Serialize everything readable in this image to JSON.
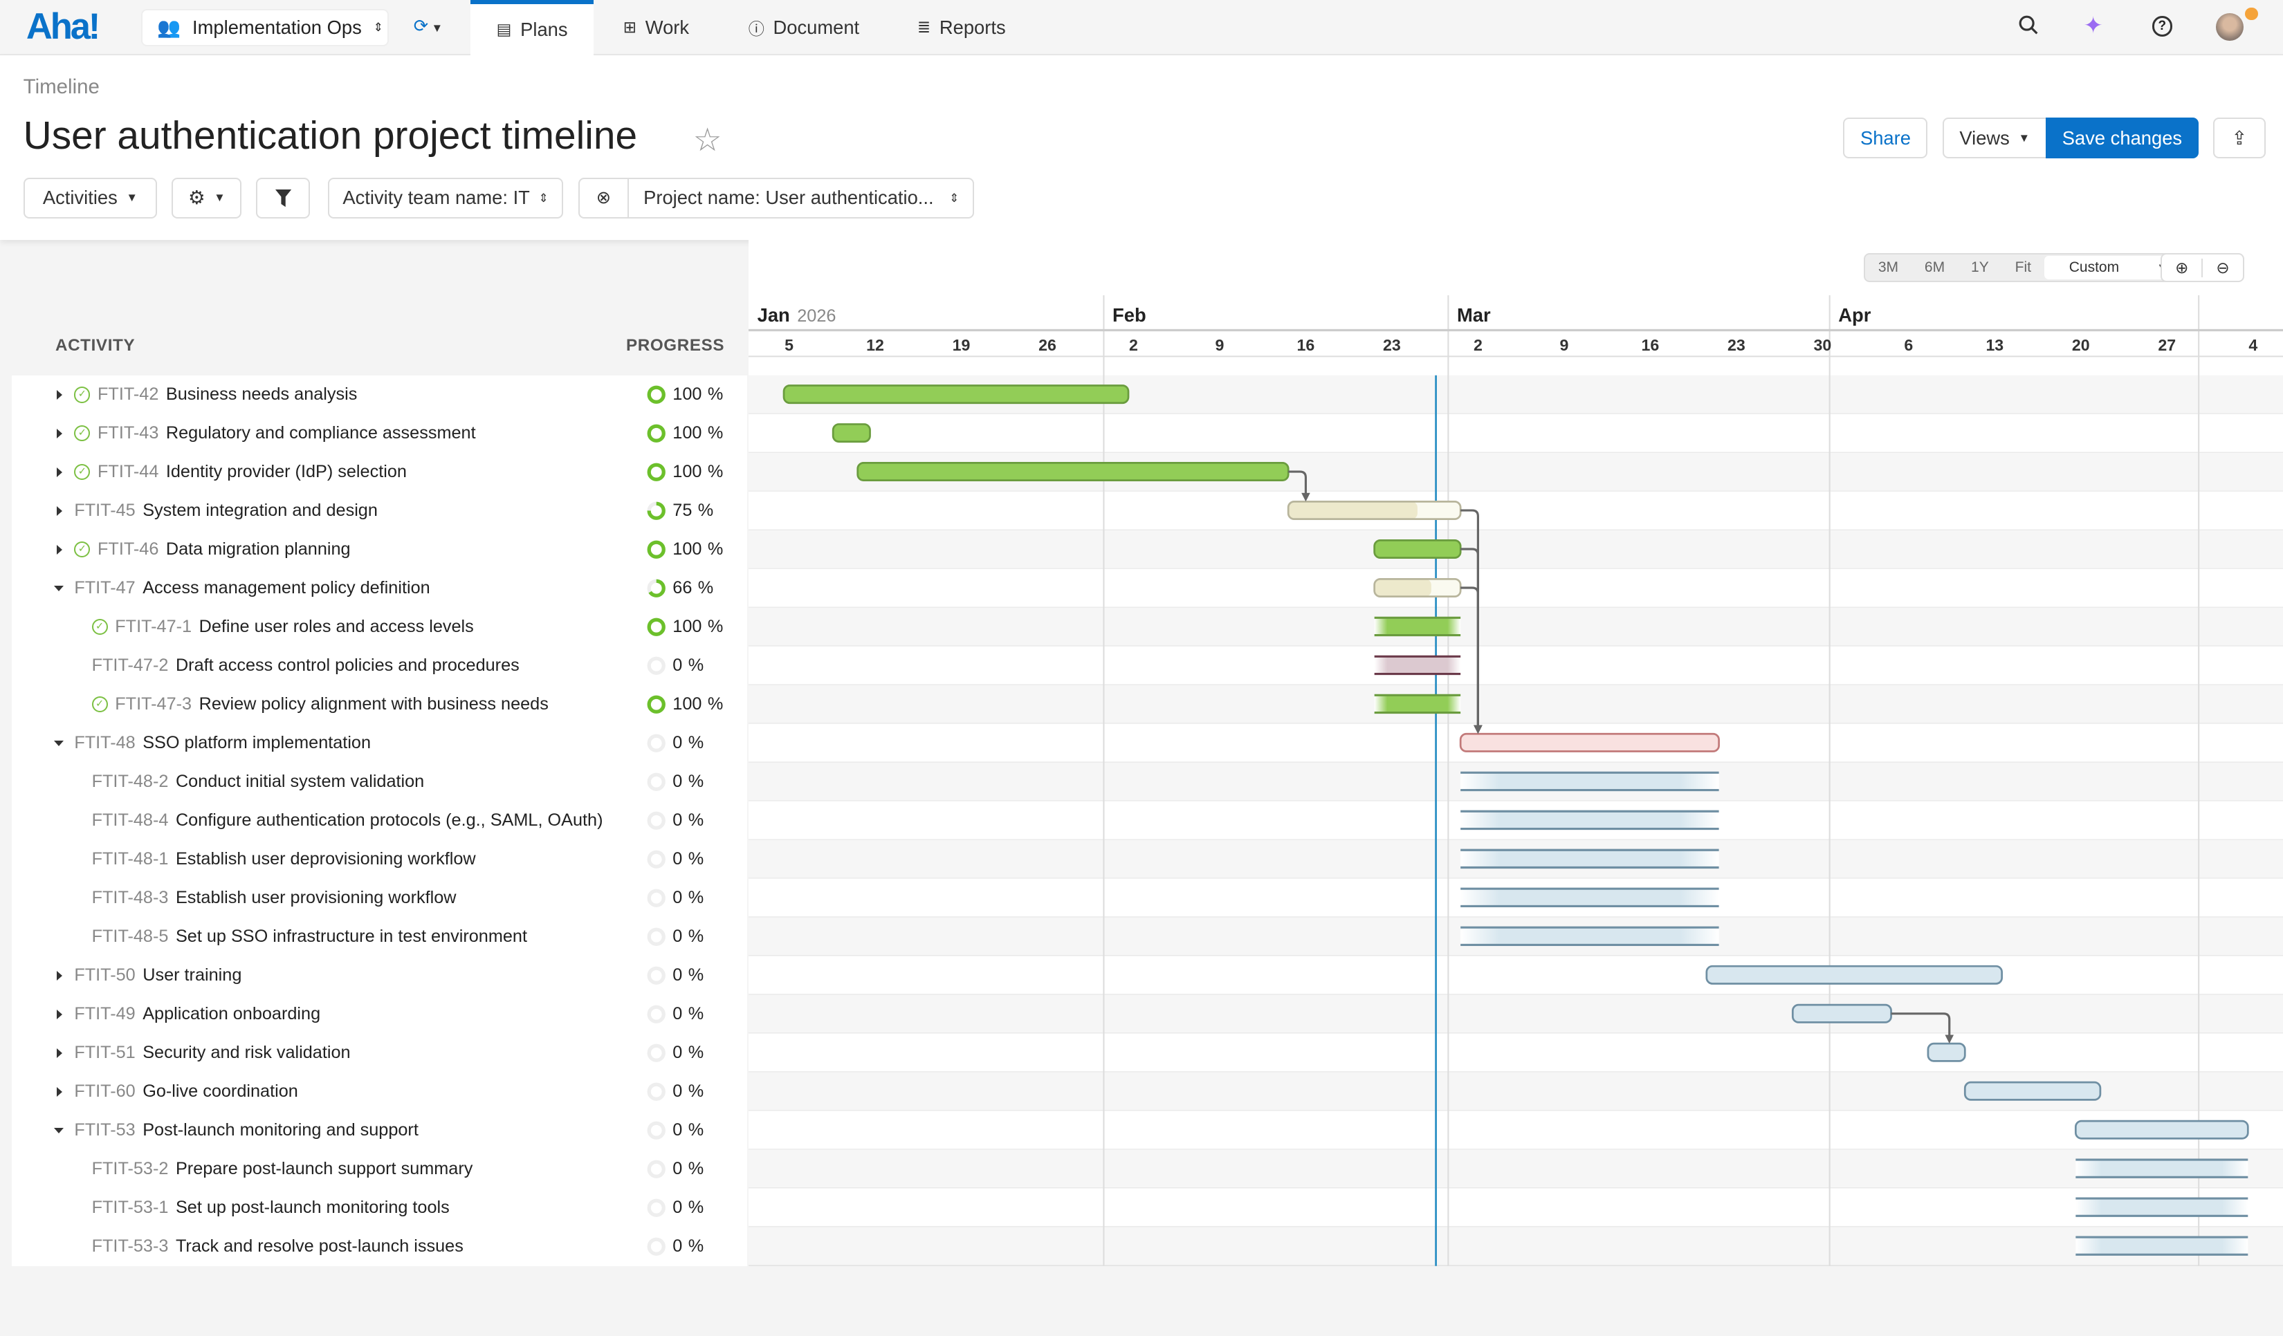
{
  "nav": {
    "logo": "Aha!",
    "workspace": "Implementation Ops",
    "tabs": [
      {
        "label": "Plans",
        "icon": "clipboard-icon",
        "active": true
      },
      {
        "label": "Work",
        "icon": "grid-icon"
      },
      {
        "label": "Document",
        "icon": "info-icon"
      },
      {
        "label": "Reports",
        "icon": "reports-icon"
      }
    ]
  },
  "page": {
    "breadcrumb": "Timeline",
    "title": "User authentication project timeline",
    "share": "Share",
    "views": "Views",
    "save": "Save changes"
  },
  "filters": {
    "activities": "Activities",
    "team": "Activity team name: IT",
    "project": "Project name: User authenticatio..."
  },
  "columns": {
    "activity": "ACTIVITY",
    "progress": "PROGRESS"
  },
  "zoom_options": [
    "3M",
    "6M",
    "1Y",
    "Fit"
  ],
  "zoom_selected": "Custom",
  "colors": {
    "accent": "#0a72c9",
    "complete": "#92cd57",
    "in_progress": "#ede9cc",
    "late": "#f9e1e0",
    "planned": "#d8e7ef",
    "today": "#2a8fc4"
  },
  "chart_data": {
    "type": "gantt",
    "year": 2026,
    "today": "2026-02-28",
    "months": [
      {
        "label": "Jan",
        "year": "2026"
      },
      {
        "label": "Feb"
      },
      {
        "label": "Mar"
      },
      {
        "label": "Apr"
      }
    ],
    "week_ticks": [
      "5",
      "12",
      "19",
      "26",
      "2",
      "9",
      "16",
      "23",
      "2",
      "9",
      "16",
      "23",
      "30",
      "6",
      "13",
      "20",
      "27",
      "4"
    ],
    "rows": [
      {
        "id": "FTIT-42",
        "name": "Business needs analysis",
        "progress": 100,
        "level": 0,
        "caret": "right",
        "done": true,
        "start": "2026-01-06",
        "end": "2026-02-02",
        "style": "complete"
      },
      {
        "id": "FTIT-43",
        "name": "Regulatory and compliance assessment",
        "progress": 100,
        "level": 0,
        "caret": "right",
        "done": true,
        "start": "2026-01-10",
        "end": "2026-01-12",
        "style": "complete"
      },
      {
        "id": "FTIT-44",
        "name": "Identity provider (IdP) selection",
        "progress": 100,
        "level": 0,
        "caret": "right",
        "done": true,
        "start": "2026-01-12",
        "end": "2026-02-15",
        "style": "complete"
      },
      {
        "id": "FTIT-45",
        "name": "System integration and design",
        "progress": 75,
        "level": 0,
        "caret": "right",
        "done": false,
        "start": "2026-02-16",
        "end": "2026-03-01",
        "style": "in_progress"
      },
      {
        "id": "FTIT-46",
        "name": "Data migration planning",
        "progress": 100,
        "level": 0,
        "caret": "right",
        "done": true,
        "start": "2026-02-23",
        "end": "2026-03-01",
        "style": "complete"
      },
      {
        "id": "FTIT-47",
        "name": "Access management policy definition",
        "progress": 66,
        "level": 0,
        "caret": "down",
        "done": false,
        "start": "2026-02-23",
        "end": "2026-03-01",
        "style": "in_progress"
      },
      {
        "id": "FTIT-47-1",
        "name": "Define user roles and access levels",
        "progress": 100,
        "level": 1,
        "done": true,
        "start": "2026-02-23",
        "end": "2026-03-01",
        "style": "sub_complete"
      },
      {
        "id": "FTIT-47-2",
        "name": "Draft access control policies and procedures",
        "progress": 0,
        "level": 1,
        "done": false,
        "start": "2026-02-23",
        "end": "2026-03-01",
        "style": "sub_late"
      },
      {
        "id": "FTIT-47-3",
        "name": "Review policy alignment with business needs",
        "progress": 100,
        "level": 1,
        "done": true,
        "start": "2026-02-23",
        "end": "2026-03-01",
        "style": "sub_complete"
      },
      {
        "id": "FTIT-48",
        "name": "SSO platform implementation",
        "progress": 0,
        "level": 0,
        "caret": "down",
        "done": false,
        "start": "2026-03-02",
        "end": "2026-03-22",
        "style": "late"
      },
      {
        "id": "FTIT-48-2",
        "name": "Conduct initial system validation",
        "progress": 0,
        "level": 1,
        "done": false,
        "start": "2026-03-02",
        "end": "2026-03-22",
        "style": "sub_planned"
      },
      {
        "id": "FTIT-48-4",
        "name": "Configure authentication protocols (e.g., SAML, OAuth)",
        "progress": 0,
        "level": 1,
        "done": false,
        "start": "2026-03-02",
        "end": "2026-03-22",
        "style": "sub_planned"
      },
      {
        "id": "FTIT-48-1",
        "name": "Establish user deprovisioning workflow",
        "progress": 0,
        "level": 1,
        "done": false,
        "start": "2026-03-02",
        "end": "2026-03-22",
        "style": "sub_planned"
      },
      {
        "id": "FTIT-48-3",
        "name": "Establish user provisioning workflow",
        "progress": 0,
        "level": 1,
        "done": false,
        "start": "2026-03-02",
        "end": "2026-03-22",
        "style": "sub_planned"
      },
      {
        "id": "FTIT-48-5",
        "name": "Set up SSO infrastructure in test environment",
        "progress": 0,
        "level": 1,
        "done": false,
        "start": "2026-03-02",
        "end": "2026-03-22",
        "style": "sub_planned"
      },
      {
        "id": "FTIT-50",
        "name": "User training",
        "progress": 0,
        "level": 0,
        "caret": "right",
        "done": false,
        "start": "2026-03-22",
        "end": "2026-04-14",
        "style": "planned"
      },
      {
        "id": "FTIT-49",
        "name": "Application onboarding",
        "progress": 0,
        "level": 0,
        "caret": "right",
        "done": false,
        "start": "2026-03-29",
        "end": "2026-04-05",
        "style": "planned"
      },
      {
        "id": "FTIT-51",
        "name": "Security and risk validation",
        "progress": 0,
        "level": 0,
        "caret": "right",
        "done": false,
        "start": "2026-04-09",
        "end": "2026-04-11",
        "style": "planned"
      },
      {
        "id": "FTIT-60",
        "name": "Go-live coordination",
        "progress": 0,
        "level": 0,
        "caret": "right",
        "done": false,
        "start": "2026-04-12",
        "end": "2026-04-22",
        "style": "planned"
      },
      {
        "id": "FTIT-53",
        "name": "Post-launch monitoring and support",
        "progress": 0,
        "level": 0,
        "caret": "down",
        "done": false,
        "start": "2026-04-21",
        "end": "2026-05-04",
        "style": "planned"
      },
      {
        "id": "FTIT-53-2",
        "name": "Prepare post-launch support summary",
        "progress": 0,
        "level": 1,
        "done": false,
        "start": "2026-04-21",
        "end": "2026-05-04",
        "style": "sub_planned"
      },
      {
        "id": "FTIT-53-1",
        "name": "Set up post-launch monitoring tools",
        "progress": 0,
        "level": 1,
        "done": false,
        "start": "2026-04-21",
        "end": "2026-05-04",
        "style": "sub_planned"
      },
      {
        "id": "FTIT-53-3",
        "name": "Track and resolve post-launch issues",
        "progress": 0,
        "level": 1,
        "done": false,
        "start": "2026-04-21",
        "end": "2026-05-04",
        "style": "sub_planned"
      }
    ],
    "dependencies": [
      [
        "FTIT-44",
        "FTIT-45"
      ],
      [
        "FTIT-45",
        "FTIT-48"
      ],
      [
        "FTIT-46",
        "FTIT-48"
      ],
      [
        "FTIT-47",
        "FTIT-48"
      ],
      [
        "FTIT-49",
        "FTIT-51"
      ]
    ]
  }
}
